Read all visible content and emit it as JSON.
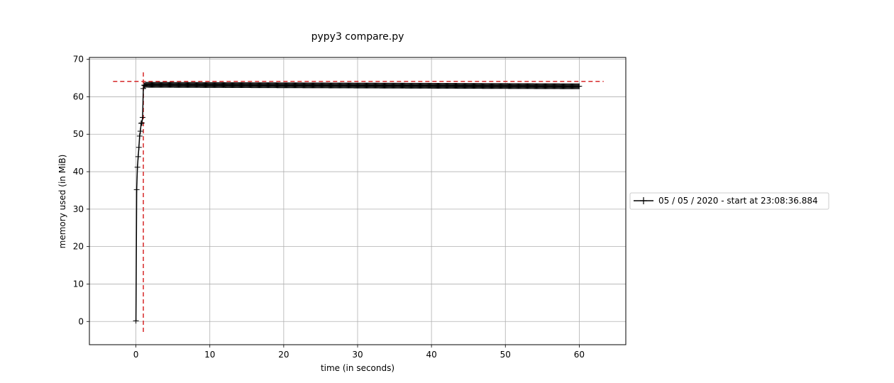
{
  "chart_data": {
    "type": "line",
    "title": "pypy3 compare.py",
    "xlabel": "time (in seconds)",
    "ylabel": "memory used (in MiB)",
    "xlim": [
      -6.3,
      66.3
    ],
    "ylim": [
      -6.2,
      70.5
    ],
    "xticks": [
      0,
      10,
      20,
      30,
      40,
      50,
      60
    ],
    "yticks": [
      0,
      10,
      20,
      30,
      40,
      50,
      60,
      70
    ],
    "grid": true,
    "legend_position": "right",
    "series": [
      {
        "name": "05 / 05 / 2020 - start at 23:08:36.884",
        "color": "#000000",
        "marker": "+",
        "x_start": 0.0,
        "x_end": 60.0,
        "sample_step": 0.1,
        "x_head": [
          0.0,
          0.1,
          0.2,
          0.3,
          0.4,
          0.5,
          0.6,
          0.7,
          0.8,
          0.9,
          1.0,
          1.1,
          1.2
        ],
        "y_head": [
          0.2,
          35.2,
          41.2,
          44.0,
          46.5,
          49.5,
          50.8,
          52.9,
          53.0,
          54.5,
          62.2,
          63.1,
          63.0
        ],
        "y_plateau_start": 63.2,
        "y_plateau_end": 62.8
      }
    ],
    "annotations": [
      {
        "type": "hline",
        "y": 64.1,
        "x_range": [
          -3.1,
          63.3
        ],
        "color": "#d62728",
        "style": "dashed"
      },
      {
        "type": "vline",
        "x": 1.0,
        "y_range": [
          -2.8,
          67.2
        ],
        "color": "#d62728",
        "style": "dashed"
      }
    ]
  }
}
